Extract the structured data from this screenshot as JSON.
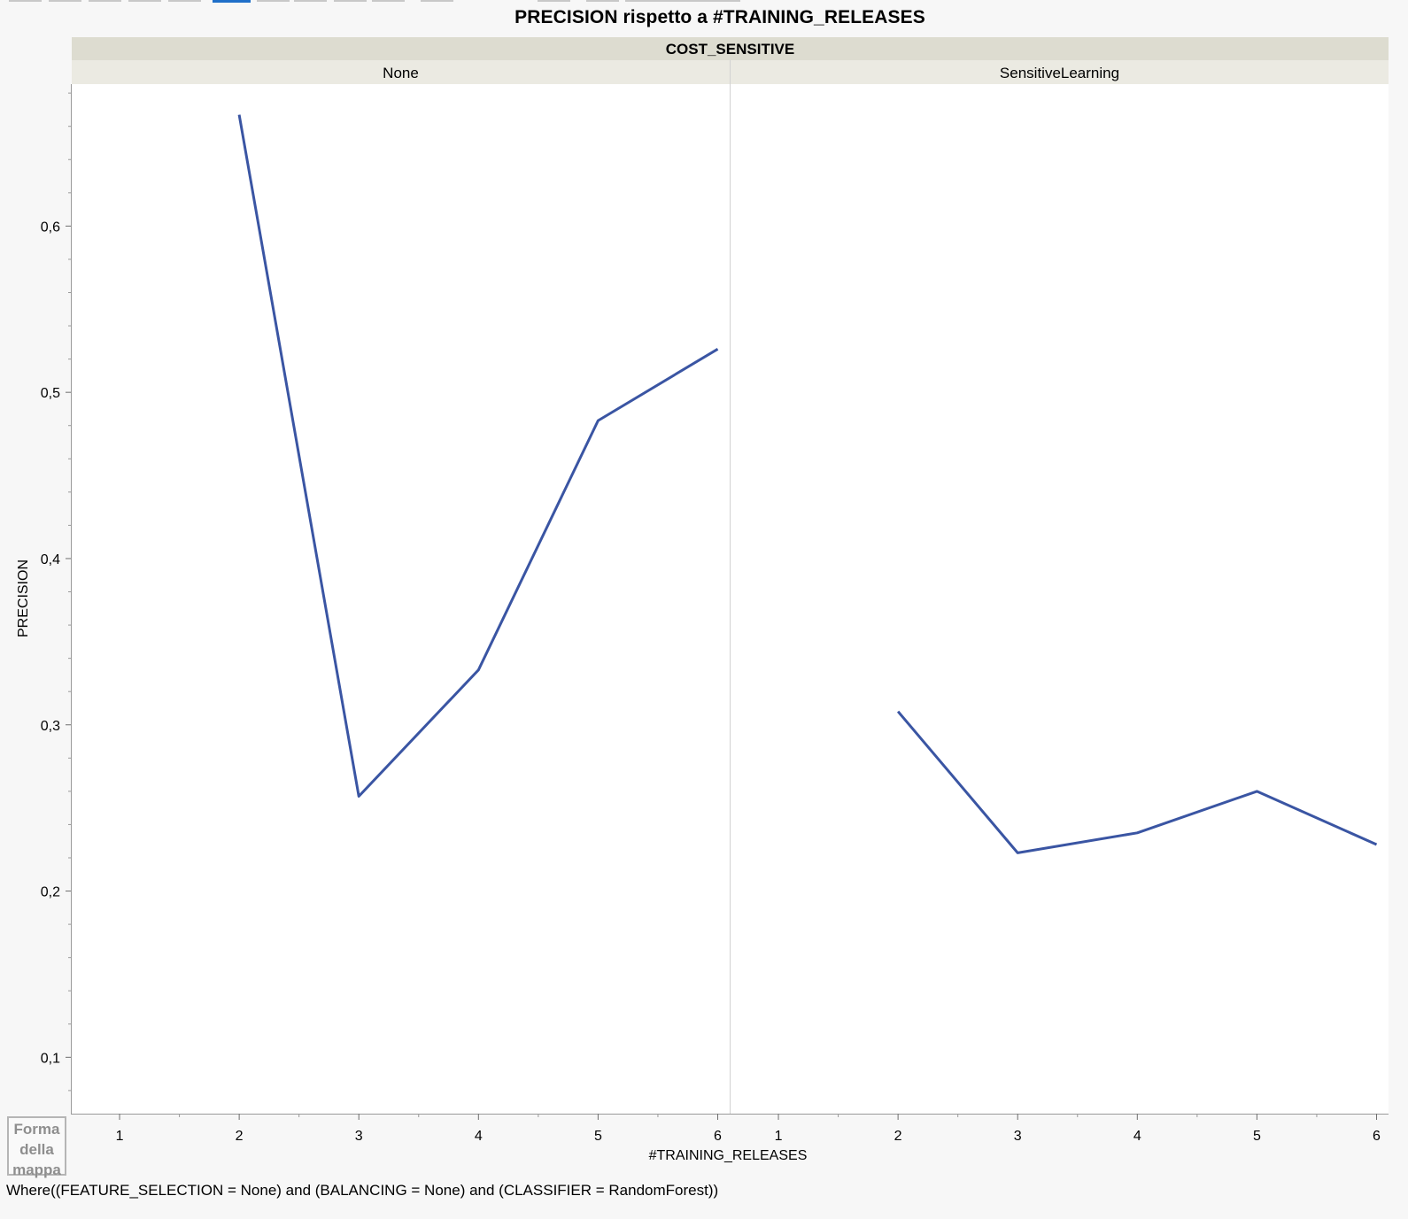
{
  "chart_data": {
    "type": "line",
    "title": "PRECISION rispetto a #TRAINING_RELEASES",
    "group_label": "COST_SENSITIVE",
    "xlabel": "#TRAINING_RELEASES",
    "ylabel": "PRECISION",
    "xlim": [
      0.6,
      6.1
    ],
    "ylim": [
      0.0661,
      0.6854
    ],
    "yticks": [
      0.1,
      0.2,
      0.3,
      0.4,
      0.5,
      0.6
    ],
    "ytick_labels": [
      "0,1",
      "0,2",
      "0,3",
      "0,4",
      "0,5",
      "0,6"
    ],
    "xticks": [
      1,
      2,
      3,
      4,
      5,
      6
    ],
    "xtick_labels": [
      "1",
      "2",
      "3",
      "4",
      "5",
      "6"
    ],
    "grid": false,
    "line_color": "#3a55a3",
    "panels": [
      {
        "name": "None",
        "series": [
          {
            "x": [
              2,
              3,
              4,
              5,
              6
            ],
            "values": [
              0.667,
              0.257,
              0.333,
              0.483,
              0.526
            ]
          }
        ]
      },
      {
        "name": "SensitiveLearning",
        "series": [
          {
            "x": [
              2,
              3,
              4,
              5,
              6
            ],
            "values": [
              0.308,
              0.223,
              0.235,
              0.26,
              0.228
            ]
          }
        ]
      }
    ],
    "legend_box": {
      "lines": [
        "Forma",
        "della",
        "mappa"
      ]
    },
    "where_clause": "Where((FEATURE_SELECTION = None) and (BALANCING = None) and (CLASSIFIER = RandomForest))"
  }
}
